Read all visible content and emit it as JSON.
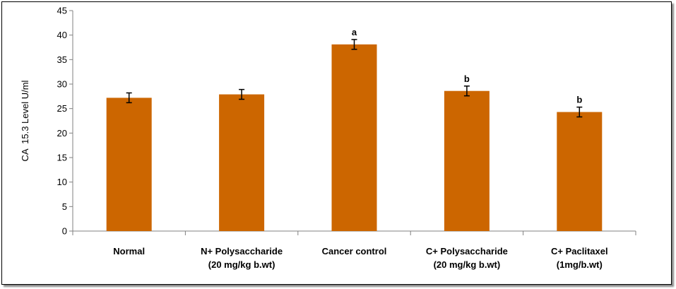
{
  "chart_data": {
    "type": "bar",
    "title": "",
    "xlabel": "",
    "ylabel": "CA  15.3 Level U/ml",
    "ylim": [
      0,
      45
    ],
    "yticks": [
      0,
      5,
      10,
      15,
      20,
      25,
      30,
      35,
      40,
      45
    ],
    "grid": false,
    "legend": "none",
    "bar_color": "#CC6600",
    "categories": [
      [
        "Normal"
      ],
      [
        "N+ Polysaccharide",
        "(20 mg/kg b.wt)"
      ],
      [
        "Cancer control"
      ],
      [
        "C+ Polysaccharide",
        "(20 mg/kg b.wt)"
      ],
      [
        "C+ Paclitaxel",
        "(1mg/b.wt)"
      ]
    ],
    "values": [
      27.2,
      27.9,
      38.1,
      28.6,
      24.3
    ],
    "errors": [
      1.0,
      1.0,
      1.0,
      1.0,
      1.0
    ],
    "annotations": [
      "",
      "",
      "a",
      "b",
      "b"
    ]
  }
}
